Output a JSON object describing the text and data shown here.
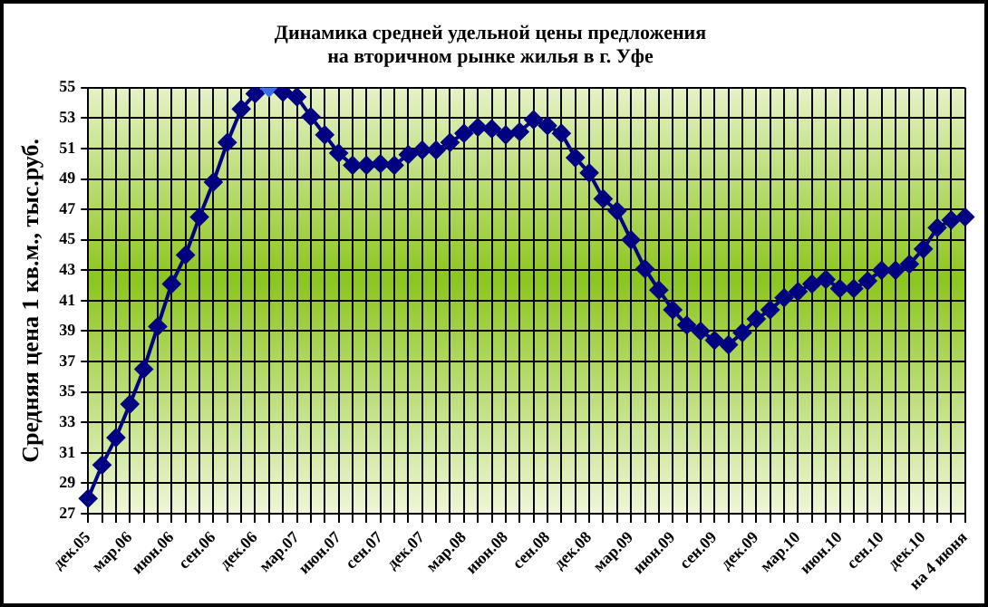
{
  "chart_data": {
    "type": "line",
    "title": "Динамика средней удельной цены предложения\nна вторичном рынке жилья в г. Уфе",
    "ylabel": "Средняя цена 1 кв.м., тыс.руб.",
    "categories": [
      "дек.05",
      null,
      null,
      "мар.06",
      null,
      null,
      "июн.06",
      null,
      null,
      "сен.06",
      null,
      null,
      "дек.06",
      null,
      null,
      "мар.07",
      null,
      null,
      "июн.07",
      null,
      null,
      "сен.07",
      null,
      null,
      "дек.07",
      null,
      null,
      "мар.08",
      null,
      null,
      "июн.08",
      null,
      null,
      "сен.08",
      null,
      null,
      "дек.08",
      null,
      null,
      "мар.09",
      null,
      null,
      "июн.09",
      null,
      null,
      "сен.09",
      null,
      null,
      "дек.09",
      null,
      null,
      "мар.10",
      null,
      null,
      "июн.10",
      null,
      null,
      "сен.10",
      null,
      null,
      "дек.10",
      null,
      null,
      "на 4 июня"
    ],
    "series": [
      {
        "color": "#000080",
        "colors": [
          "#000080",
          "#000080",
          "#000080",
          "#000080",
          "#000080",
          "#000080",
          "#000080",
          "#000080",
          "#000080",
          "#000080",
          "#000080",
          "#000080",
          "#000080",
          "#3a6fe8",
          "#000080",
          "#000080",
          "#000080",
          "#000080",
          "#000080",
          "#000080",
          "#000080",
          "#000080",
          "#000080",
          "#000080",
          "#000080",
          "#000080",
          "#000080",
          "#000080",
          "#000080",
          "#000080",
          "#000080",
          "#000080",
          "#000080",
          "#000080",
          "#000080",
          "#000080",
          "#000080",
          "#000080",
          "#000080",
          "#000080",
          "#000080",
          "#000080",
          "#000080",
          "#000080",
          "#000080",
          "#000080",
          "#000080",
          "#000080",
          "#000080",
          "#000080",
          "#000080",
          "#000080",
          "#000080",
          "#000080",
          "#000080",
          "#000080",
          "#000080",
          "#000080",
          "#000080",
          "#000080",
          "#000080",
          "#000080",
          "#000080",
          "#000080"
        ],
        "values": [
          28.0,
          30.2,
          32.0,
          34.2,
          36.5,
          39.3,
          42.1,
          44.0,
          46.5,
          48.8,
          51.4,
          53.6,
          54.6,
          55.0,
          54.7,
          54.4,
          53.1,
          51.9,
          50.7,
          49.9,
          49.9,
          50.0,
          49.9,
          50.6,
          50.9,
          50.9,
          51.4,
          52.0,
          52.4,
          52.3,
          51.9,
          52.1,
          52.9,
          52.5,
          52.0,
          50.4,
          49.4,
          47.7,
          46.9,
          45.0,
          43.1,
          41.7,
          40.4,
          39.4,
          39.0,
          38.4,
          38.1,
          38.9,
          39.8,
          40.4,
          41.2,
          41.6,
          42.1,
          42.4,
          41.8,
          41.8,
          42.3,
          43.0,
          43.0,
          43.4,
          44.4,
          45.8,
          46.3,
          46.5
        ]
      }
    ],
    "ylim": [
      27,
      55
    ],
    "yticks": [
      27,
      29,
      31,
      33,
      35,
      37,
      39,
      41,
      43,
      45,
      47,
      49,
      51,
      53,
      55
    ],
    "grid": true,
    "legend": false,
    "marker": "diamond",
    "line_style": "solid"
  }
}
